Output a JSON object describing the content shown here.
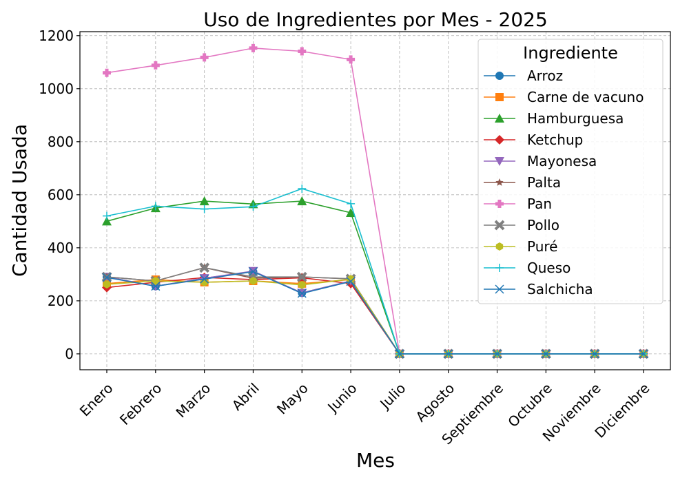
{
  "chart_data": {
    "type": "line",
    "title": "Uso de Ingredientes por Mes - 2025",
    "xlabel": "Mes",
    "ylabel": "Cantidad Usada",
    "categories": [
      "Enero",
      "Febrero",
      "Marzo",
      "Abril",
      "Mayo",
      "Junio",
      "Julio",
      "Agosto",
      "Septiembre",
      "Octubre",
      "Noviembre",
      "Diciembre"
    ],
    "ylim": [
      -60,
      1215
    ],
    "yticks": [
      0,
      200,
      400,
      600,
      800,
      1000,
      1200
    ],
    "grid": true,
    "legend_title": "Ingrediente",
    "legend_position": "upper-right",
    "series": [
      {
        "name": "Arroz",
        "color": "#1f77b4",
        "marker": "circle",
        "values": [
          290,
          255,
          285,
          310,
          230,
          275,
          0,
          0,
          0,
          0,
          0,
          0
        ]
      },
      {
        "name": "Carne de vacuno",
        "color": "#ff7f0e",
        "marker": "square",
        "values": [
          265,
          280,
          270,
          275,
          265,
          280,
          0,
          0,
          0,
          0,
          0,
          0
        ]
      },
      {
        "name": "Hamburguesa",
        "color": "#2ca02c",
        "marker": "triangle-up",
        "values": [
          500,
          550,
          576,
          565,
          576,
          532,
          0,
          0,
          0,
          0,
          0,
          0
        ]
      },
      {
        "name": "Ketchup",
        "color": "#d62728",
        "marker": "diamond",
        "values": [
          250,
          270,
          288,
          280,
          287,
          265,
          0,
          0,
          0,
          0,
          0,
          0
        ]
      },
      {
        "name": "Mayonesa",
        "color": "#9467bd",
        "marker": "triangle-down",
        "values": [
          290,
          255,
          285,
          312,
          230,
          275,
          0,
          0,
          0,
          0,
          0,
          0
        ]
      },
      {
        "name": "Palta",
        "color": "#8c564b",
        "marker": "star",
        "values": [
          290,
          275,
          325,
          285,
          290,
          283,
          0,
          0,
          0,
          0,
          0,
          0
        ]
      },
      {
        "name": "Pan",
        "color": "#e377c2",
        "marker": "plus",
        "values": [
          1060,
          1088,
          1118,
          1153,
          1141,
          1110,
          0,
          0,
          0,
          0,
          0,
          0
        ]
      },
      {
        "name": "Pollo",
        "color": "#7f7f7f",
        "marker": "x-filled",
        "values": [
          290,
          275,
          325,
          290,
          290,
          283,
          0,
          0,
          0,
          0,
          0,
          0
        ]
      },
      {
        "name": "Puré",
        "color": "#bcbd22",
        "marker": "hexagon",
        "values": [
          262,
          275,
          270,
          275,
          260,
          282,
          0,
          0,
          0,
          0,
          0,
          0
        ]
      },
      {
        "name": "Queso",
        "color": "#17becf",
        "marker": "thin-plus",
        "values": [
          520,
          557,
          546,
          555,
          623,
          566,
          0,
          0,
          0,
          0,
          0,
          0
        ]
      },
      {
        "name": "Salchicha",
        "color": "#1f77b4",
        "marker": "thin-x",
        "values": [
          288,
          255,
          282,
          310,
          228,
          273,
          0,
          0,
          0,
          0,
          0,
          0
        ]
      }
    ]
  }
}
